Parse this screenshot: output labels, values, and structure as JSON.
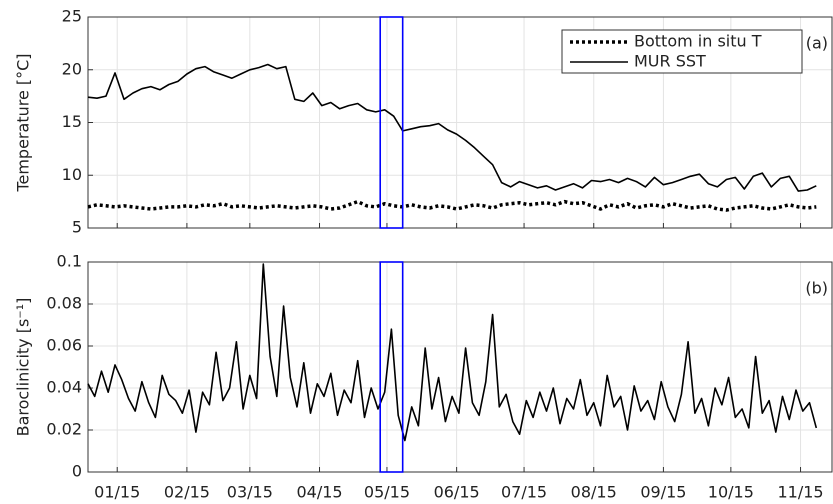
{
  "chart_data": [
    {
      "type": "line",
      "panel_label": "(a)",
      "ylabel": "Temperature [°C]",
      "x": [
        1,
        5,
        9,
        13,
        17,
        21,
        25,
        29,
        33,
        37,
        41,
        45,
        49,
        53,
        57,
        61,
        65,
        69,
        73,
        77,
        81,
        85,
        89,
        93,
        97,
        101,
        105,
        109,
        113,
        117,
        121,
        125,
        129,
        133,
        137,
        141,
        145,
        149,
        153,
        157,
        161,
        165,
        169,
        173,
        177,
        181,
        185,
        189,
        193,
        197,
        201,
        205,
        209,
        213,
        217,
        221,
        225,
        229,
        233,
        237,
        241,
        245,
        249,
        253,
        257,
        261,
        265,
        269,
        273,
        277,
        281,
        285,
        289,
        293,
        297,
        301,
        305,
        309,
        313,
        317,
        321,
        325
      ],
      "series": [
        {
          "name": "Bottom in situ T",
          "color": "#000000",
          "dash": "dotted",
          "values": [
            7.0,
            7.2,
            7.1,
            7.0,
            7.1,
            7.0,
            6.9,
            6.8,
            6.9,
            7.0,
            7.0,
            7.1,
            7.0,
            7.2,
            7.1,
            7.3,
            7.0,
            7.1,
            7.0,
            6.9,
            7.0,
            7.1,
            7.0,
            6.9,
            7.0,
            7.1,
            7.0,
            6.8,
            6.9,
            7.2,
            7.5,
            7.1,
            7.0,
            7.3,
            7.1,
            7.0,
            7.2,
            7.0,
            6.9,
            7.1,
            7.0,
            6.8,
            7.0,
            7.2,
            7.1,
            6.9,
            7.2,
            7.3,
            7.4,
            7.2,
            7.3,
            7.4,
            7.2,
            7.5,
            7.3,
            7.4,
            7.1,
            6.8,
            7.2,
            7.0,
            7.3,
            6.9,
            7.1,
            7.2,
            7.0,
            7.3,
            7.1,
            6.9,
            7.0,
            7.1,
            6.8,
            6.7,
            6.9,
            7.0,
            7.1,
            6.9,
            6.8,
            7.0,
            7.2,
            7.0,
            6.9,
            7.0
          ]
        },
        {
          "name": "MUR SST",
          "color": "#000000",
          "dash": "solid",
          "values": [
            17.4,
            17.3,
            17.5,
            19.7,
            17.2,
            17.8,
            18.2,
            18.4,
            18.1,
            18.6,
            18.9,
            19.6,
            20.1,
            20.3,
            19.8,
            19.5,
            19.2,
            19.6,
            20.0,
            20.2,
            20.5,
            20.1,
            20.3,
            17.2,
            17.0,
            17.8,
            16.6,
            16.9,
            16.3,
            16.6,
            16.8,
            16.2,
            16.0,
            16.2,
            15.6,
            14.2,
            14.4,
            14.6,
            14.7,
            14.9,
            14.3,
            13.9,
            13.3,
            12.6,
            11.8,
            11.0,
            9.3,
            8.9,
            9.4,
            9.1,
            8.8,
            9.0,
            8.6,
            8.9,
            9.2,
            8.8,
            9.5,
            9.4,
            9.6,
            9.3,
            9.7,
            9.4,
            8.9,
            9.8,
            9.1,
            9.3,
            9.6,
            9.9,
            10.1,
            9.2,
            8.9,
            9.6,
            9.8,
            8.7,
            9.9,
            10.2,
            8.9,
            9.7,
            9.9,
            8.5,
            8.6,
            9.0
          ]
        }
      ],
      "xlim": [
        1,
        332
      ],
      "xticks": [
        14,
        45,
        73,
        104,
        134,
        165,
        195,
        226,
        257,
        287,
        318
      ],
      "ylim": [
        5,
        25
      ],
      "yticks": [
        5,
        10,
        15,
        20,
        25
      ],
      "grid": true,
      "highlight_x": [
        131,
        141
      ],
      "highlight_color": "#0000ff",
      "legend": "upper right"
    },
    {
      "type": "line",
      "panel_label": "(b)",
      "ylabel": "Baroclinicity [s⁻¹]",
      "x": [
        1,
        4,
        7,
        10,
        13,
        16,
        19,
        22,
        25,
        28,
        31,
        34,
        37,
        40,
        43,
        46,
        49,
        52,
        55,
        58,
        61,
        64,
        67,
        70,
        73,
        76,
        79,
        82,
        85,
        88,
        91,
        94,
        97,
        100,
        103,
        106,
        109,
        112,
        115,
        118,
        121,
        124,
        127,
        130,
        133,
        136,
        139,
        142,
        145,
        148,
        151,
        154,
        157,
        160,
        163,
        166,
        169,
        172,
        175,
        178,
        181,
        184,
        187,
        190,
        193,
        196,
        199,
        202,
        205,
        208,
        211,
        214,
        217,
        220,
        223,
        226,
        229,
        232,
        235,
        238,
        241,
        244,
        247,
        250,
        253,
        256,
        259,
        262,
        265,
        268,
        271,
        274,
        277,
        280,
        283,
        286,
        289,
        292,
        295,
        298,
        301,
        304,
        307,
        310,
        313,
        316,
        319,
        322,
        325
      ],
      "series": [
        {
          "name": "Baroclinicity",
          "color": "#000000",
          "values": [
            0.042,
            0.036,
            0.048,
            0.038,
            0.051,
            0.044,
            0.035,
            0.029,
            0.043,
            0.033,
            0.026,
            0.046,
            0.037,
            0.034,
            0.028,
            0.039,
            0.019,
            0.038,
            0.032,
            0.057,
            0.034,
            0.04,
            0.062,
            0.03,
            0.046,
            0.035,
            0.099,
            0.055,
            0.036,
            0.079,
            0.045,
            0.031,
            0.052,
            0.028,
            0.042,
            0.036,
            0.047,
            0.027,
            0.039,
            0.033,
            0.053,
            0.026,
            0.04,
            0.03,
            0.038,
            0.068,
            0.027,
            0.015,
            0.031,
            0.022,
            0.059,
            0.03,
            0.045,
            0.024,
            0.036,
            0.028,
            0.059,
            0.033,
            0.027,
            0.043,
            0.075,
            0.031,
            0.037,
            0.024,
            0.018,
            0.034,
            0.026,
            0.038,
            0.029,
            0.04,
            0.023,
            0.035,
            0.03,
            0.044,
            0.027,
            0.033,
            0.022,
            0.046,
            0.031,
            0.036,
            0.02,
            0.041,
            0.029,
            0.034,
            0.025,
            0.043,
            0.031,
            0.024,
            0.037,
            0.062,
            0.028,
            0.035,
            0.022,
            0.04,
            0.032,
            0.045,
            0.026,
            0.03,
            0.021,
            0.055,
            0.028,
            0.034,
            0.019,
            0.036,
            0.025,
            0.039,
            0.029,
            0.033,
            0.021
          ]
        }
      ],
      "xlim": [
        1,
        332
      ],
      "xticks": [
        {
          "value": 14,
          "label": "01/15"
        },
        {
          "value": 45,
          "label": "02/15"
        },
        {
          "value": 73,
          "label": "03/15"
        },
        {
          "value": 104,
          "label": "04/15"
        },
        {
          "value": 134,
          "label": "05/15"
        },
        {
          "value": 165,
          "label": "06/15"
        },
        {
          "value": 195,
          "label": "07/15"
        },
        {
          "value": 226,
          "label": "08/15"
        },
        {
          "value": 257,
          "label": "09/15"
        },
        {
          "value": 287,
          "label": "10/15"
        },
        {
          "value": 318,
          "label": "11/15"
        }
      ],
      "ylim": [
        0,
        0.1
      ],
      "yticks": [
        0,
        0.02,
        0.04,
        0.06,
        0.08,
        0.1
      ],
      "grid": true,
      "highlight_x": [
        131,
        141
      ],
      "highlight_color": "#0000ff"
    }
  ]
}
